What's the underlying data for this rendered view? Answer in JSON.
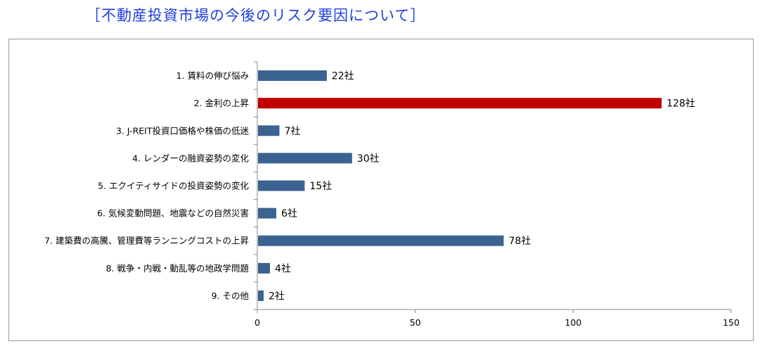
{
  "title": "［不動産投資市場の今後のリスク要因について］",
  "chart_data": {
    "type": "bar",
    "orientation": "horizontal",
    "title": "［不動産投資市場の今後のリスク要因について］",
    "categories": [
      "1. 賃料の伸び悩み",
      "2. 金利の上昇",
      "3. J-REIT投資口価格や株価の低迷",
      "4. レンダーの融資姿勢の変化",
      "5. エクイティサイドの投資姿勢の変化",
      "6. 気候変動問題、地震などの自然災害",
      "7. 建築費の高騰、管理費等ランニングコストの上昇",
      "8. 戦争・内戦・動乱等の地政学問題",
      "9. その他"
    ],
    "values": [
      22,
      128,
      7,
      30,
      15,
      6,
      78,
      4,
      2
    ],
    "value_labels": [
      "22社",
      "128社",
      "7社",
      "30社",
      "15社",
      "6社",
      "78社",
      "4社",
      "2社"
    ],
    "xlim": [
      0,
      150
    ],
    "xticks": [
      "0",
      "50",
      "100",
      "150"
    ],
    "colors": {
      "default": "#3a6391",
      "highlight": "#c00000"
    },
    "highlight_index": 1,
    "grid": false
  }
}
